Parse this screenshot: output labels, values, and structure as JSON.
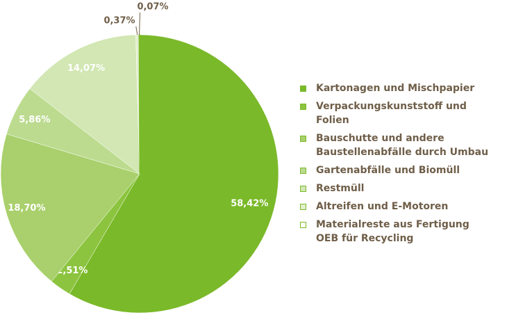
{
  "chart_data": {
    "type": "pie",
    "categories": [
      "Kartonagen und Mischpapier",
      "Verpackungskunststoff und Folien",
      "Bauschutte und andere Baustellenabfälle durch Umbau",
      "Gartenabfälle und Biomüll",
      "Restmüll",
      "Altreifen und E-Motoren",
      "Materialreste aus Fertigung OEB für Recycling"
    ],
    "values": [
      58.42,
      2.51,
      18.7,
      5.86,
      14.07,
      0.37,
      0.07
    ],
    "value_labels": [
      "58,42%",
      "2,51%",
      "18,70%",
      "5,86%",
      "14,07%",
      "0,37%",
      "0,07%"
    ],
    "colors": [
      "#7ab929",
      "#8cc43f",
      "#a9d06c",
      "#bcdb8f",
      "#d2e7b3",
      "#e3efcf",
      "#ffffff"
    ]
  }
}
